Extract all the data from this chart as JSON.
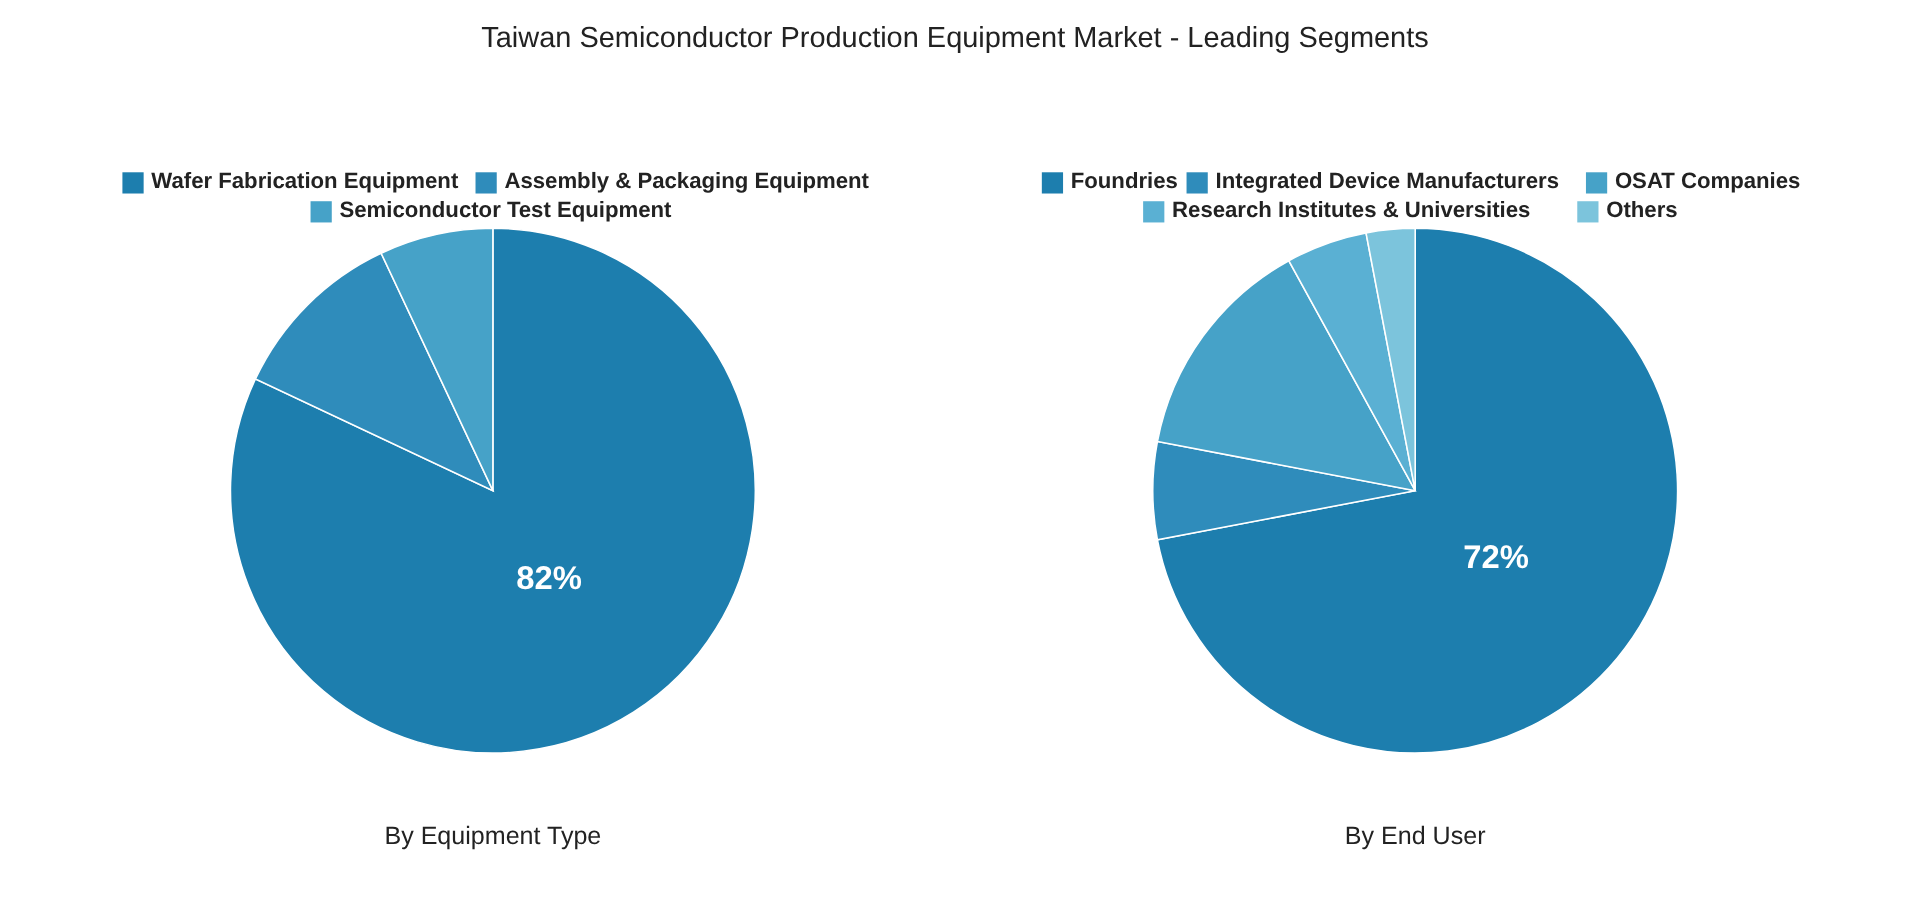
{
  "chart_data": [
    {
      "type": "pie",
      "title": "Taiwan Semiconductor Production Equipment Market - Leading Segments",
      "xlabel": "By Equipment Type",
      "legend": "top",
      "categories": [
        "Wafer Fabrication Equipment",
        "Assembly & Packaging Equipment",
        "Semiconductor Test Equipment"
      ],
      "values": [
        82,
        11,
        7
      ],
      "colors": [
        "#1d7eae",
        "#2f8cbb",
        "#46a2c8"
      ],
      "value_labels": [
        "82%",
        null,
        null
      ]
    },
    {
      "type": "pie",
      "xlabel": "By End User",
      "legend": "top",
      "categories": [
        "Foundries",
        "Integrated Device Manufacturers",
        "OSAT Companies",
        "Research Institutes & Universities",
        "Others"
      ],
      "values": [
        72,
        6,
        14,
        5,
        3
      ],
      "colors": [
        "#1d7eae",
        "#2f8cbb",
        "#46a2c8",
        "#5ab0d3",
        "#7cc4dc"
      ],
      "value_labels": [
        "72%",
        null,
        null,
        null,
        null
      ]
    }
  ]
}
